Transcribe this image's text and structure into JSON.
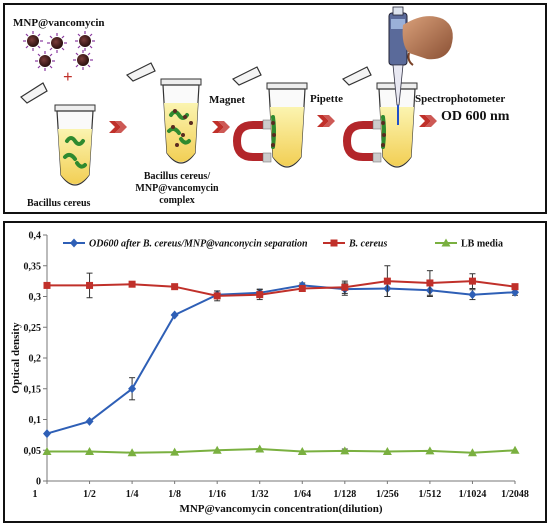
{
  "workflow": {
    "reagent_label": "MNP@vancomycin",
    "plus_sign": "+",
    "tube1_label": "Bacillus cereus",
    "tube2_label_lines": [
      "Bacillus cereus/",
      "MNP@vancomycin",
      "complex"
    ],
    "step_magnet": "Magnet",
    "step_pipette": "Pipette",
    "step_spectro": "Spectrophotometer",
    "readout": "OD 600 nm"
  },
  "chart_data": {
    "type": "line",
    "title": "",
    "xlabel": "MNP@vancomycin concentration(dilution)",
    "ylabel": "Optical density",
    "x_ticks": [
      "1",
      "1/2",
      "1/4",
      "1/8",
      "1/16",
      "1/32",
      "1/64",
      "1/128",
      "1/256",
      "1/512",
      "1/1024",
      "1/2048"
    ],
    "ylim": [
      0,
      0.4
    ],
    "y_ticks": [
      "0",
      "0,05",
      "0,1",
      "0,15",
      "0,2",
      "0,25",
      "0,3",
      "0,35",
      "0,4"
    ],
    "legend_position": "top",
    "series": [
      {
        "name": "OD600 after B. cereus/MNP@vanconycin separation",
        "color": "#2e5fb6",
        "marker": "diamond",
        "values": [
          0.077,
          0.097,
          0.15,
          0.27,
          0.303,
          0.306,
          0.318,
          0.312,
          0.313,
          0.31,
          0.303,
          0.307
        ],
        "errors": [
          0,
          0,
          0.018,
          0,
          0.006,
          0.006,
          0.004,
          0.01,
          0.013,
          0.01,
          0.008,
          0.005
        ]
      },
      {
        "name": "B. cereus",
        "color": "#c0302a",
        "marker": "square",
        "values": [
          0.318,
          0.318,
          0.32,
          0.316,
          0.301,
          0.303,
          0.313,
          0.315,
          0.325,
          0.322,
          0.325,
          0.316
        ],
        "errors": [
          0,
          0.02,
          0,
          0,
          0.008,
          0.008,
          0,
          0.01,
          0.025,
          0.02,
          0.012,
          0
        ]
      },
      {
        "name": "LB media",
        "color": "#7ab040",
        "marker": "triangle",
        "values": [
          0.048,
          0.048,
          0.046,
          0.047,
          0.05,
          0.052,
          0.048,
          0.049,
          0.048,
          0.049,
          0.046,
          0.05
        ],
        "errors": [
          0,
          0,
          0,
          0,
          0,
          0,
          0,
          0.003,
          0,
          0,
          0,
          0
        ]
      }
    ]
  }
}
